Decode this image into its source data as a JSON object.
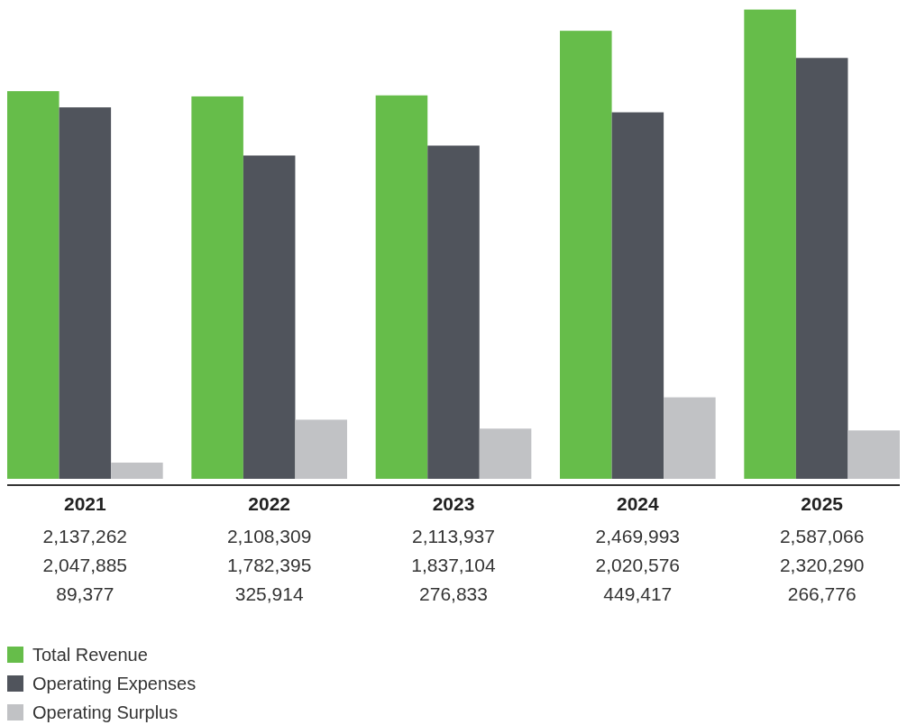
{
  "chart_data": {
    "type": "bar",
    "categories": [
      "2021",
      "2022",
      "2023",
      "2024",
      "2025"
    ],
    "ylim": [
      0,
      2600000
    ],
    "legend": "bottom left",
    "series": [
      {
        "name": "Total Revenue",
        "color": "#66bd4a",
        "values": [
          2137262,
          2108309,
          2113937,
          2469993,
          2587066
        ],
        "value_labels": [
          "2,137,262",
          "2,108,309",
          "2,113,937",
          "2,469,993",
          "2,587,066"
        ]
      },
      {
        "name": "Operating Expenses",
        "color": "#50545c",
        "values": [
          2047885,
          1782395,
          1837104,
          2020576,
          2320290
        ],
        "value_labels": [
          "2,047,885",
          "1,782,395",
          "1,837,104",
          "2,020,576",
          "2,320,290"
        ]
      },
      {
        "name": "Operating Surplus",
        "color": "#c1c2c5",
        "values": [
          89377,
          325914,
          276833,
          449417,
          266776
        ],
        "value_labels": [
          "89,377",
          "325,914",
          "276,833",
          "449,417",
          "266,776"
        ]
      }
    ]
  }
}
